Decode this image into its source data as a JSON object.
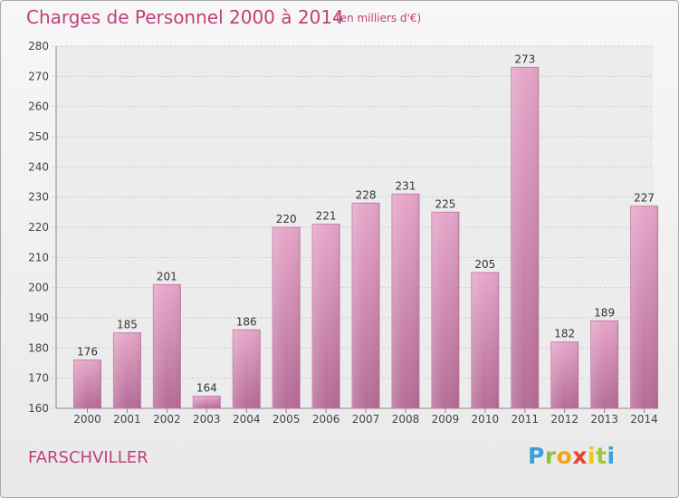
{
  "chart_data": {
    "type": "bar",
    "title": "Charges de Personnel 2000 à 2014",
    "subtitle": "(en milliers d'€)",
    "categories": [
      "2000",
      "2001",
      "2002",
      "2003",
      "2004",
      "2005",
      "2006",
      "2007",
      "2008",
      "2009",
      "2010",
      "2011",
      "2012",
      "2013",
      "2014"
    ],
    "values": [
      176,
      185,
      201,
      164,
      186,
      220,
      221,
      228,
      231,
      225,
      205,
      273,
      182,
      189,
      227
    ],
    "ylim": [
      160,
      280
    ],
    "yticks": [
      160,
      170,
      180,
      190,
      200,
      210,
      220,
      230,
      240,
      250,
      260,
      270,
      280
    ],
    "grid": true,
    "bar_color": "#d98ab6"
  },
  "footer": {
    "town": "FARSCHVILLER",
    "logo": {
      "letters": [
        "P",
        "r",
        "o",
        "x",
        "i",
        "t",
        "i"
      ],
      "colors": [
        "#3aa0dc",
        "#8bc43f",
        "#f7a21b",
        "#e8412c",
        "#f0c419",
        "#9bcb3b",
        "#3aa0dc"
      ]
    }
  }
}
